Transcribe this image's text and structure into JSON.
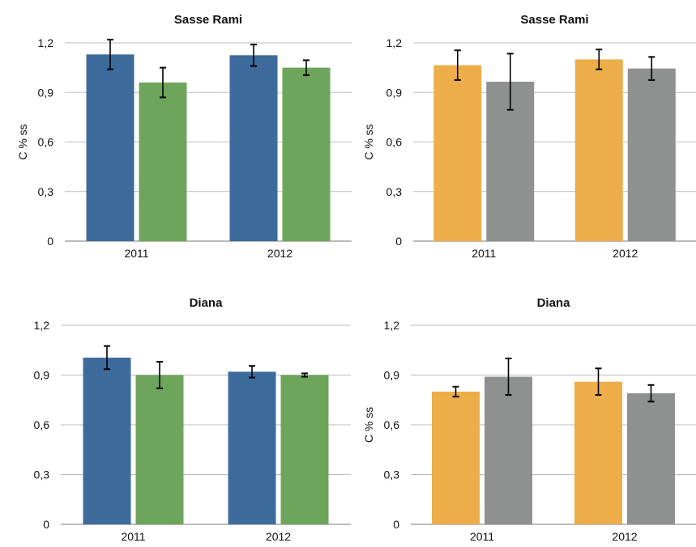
{
  "colors": {
    "blue": "#3D6B9C",
    "green": "#6DA55A",
    "orange": "#EDAE49",
    "gray": "#8F9190",
    "grid": "#BDBDBD",
    "axis": "#777777",
    "text": "#111111"
  },
  "chart_data": [
    {
      "type": "bar",
      "title": "Sasse Rami",
      "ylabel": "C % ss",
      "xlabel": "",
      "ylim": [
        0,
        1.2
      ],
      "yticks": [
        "0",
        "0,3",
        "0,6",
        "0,9",
        "1,2"
      ],
      "grid": true,
      "categories": [
        "2011",
        "2012"
      ],
      "series": [
        {
          "color": "#3D6B9C",
          "values": [
            1.13,
            1.125
          ],
          "errors": [
            0.09,
            0.065
          ]
        },
        {
          "color": "#6DA55A",
          "values": [
            0.96,
            1.05
          ],
          "errors": [
            0.09,
            0.045
          ]
        }
      ]
    },
    {
      "type": "bar",
      "title": "Sasse Rami",
      "ylabel": "C % ss",
      "xlabel": "",
      "ylim": [
        0,
        1.2
      ],
      "yticks": [
        "0",
        "0,3",
        "0,6",
        "0,9",
        "1,2"
      ],
      "grid": true,
      "categories": [
        "2011",
        "2012"
      ],
      "series": [
        {
          "color": "#EDAE49",
          "values": [
            1.065,
            1.1
          ],
          "errors": [
            0.09,
            0.06
          ]
        },
        {
          "color": "#8F9190",
          "values": [
            0.965,
            1.045
          ],
          "errors": [
            0.17,
            0.07
          ]
        }
      ]
    },
    {
      "type": "bar",
      "title": "Diana",
      "ylabel": "",
      "xlabel": "",
      "ylim": [
        0,
        1.2
      ],
      "yticks": [
        "0",
        "0,3",
        "0,6",
        "0,9",
        "1,2"
      ],
      "grid": true,
      "categories": [
        "2011",
        "2012"
      ],
      "series": [
        {
          "color": "#3D6B9C",
          "values": [
            1.005,
            0.92
          ],
          "errors": [
            0.07,
            0.035
          ]
        },
        {
          "color": "#6DA55A",
          "values": [
            0.9,
            0.9
          ],
          "errors": [
            0.08,
            0.01
          ]
        }
      ]
    },
    {
      "type": "bar",
      "title": "Diana",
      "ylabel": "C % ss",
      "xlabel": "",
      "ylim": [
        0,
        1.2
      ],
      "yticks": [
        "0",
        "0,3",
        "0,6",
        "0,9",
        "1,2"
      ],
      "grid": true,
      "categories": [
        "2011",
        "2012"
      ],
      "series": [
        {
          "color": "#EDAE49",
          "values": [
            0.8,
            0.86
          ],
          "errors": [
            0.03,
            0.08
          ]
        },
        {
          "color": "#8F9190",
          "values": [
            0.89,
            0.79
          ],
          "errors": [
            0.11,
            0.05
          ]
        }
      ]
    }
  ]
}
